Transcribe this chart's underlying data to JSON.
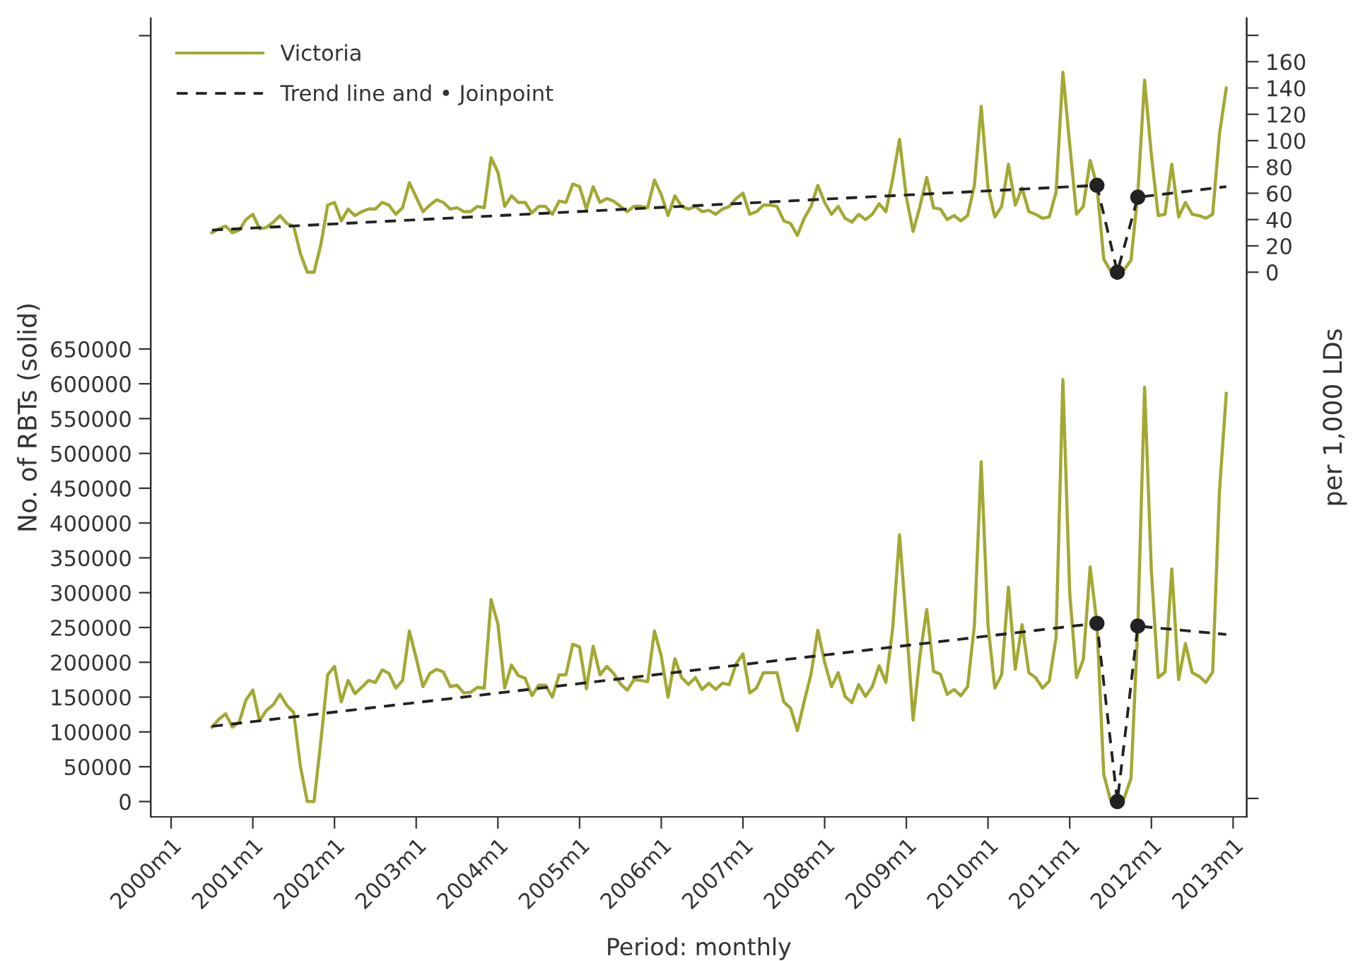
{
  "chart_data": {
    "type": "line",
    "xlabel": "Period: monthly",
    "ylabel": "No. of RBTs (solid)",
    "y2label": "per 1,000 LDs",
    "x": [
      "2000-07",
      "2000-08",
      "2000-09",
      "2000-10",
      "2000-11",
      "2000-12",
      "2001-01",
      "2001-02",
      "2001-03",
      "2001-04",
      "2001-05",
      "2001-06",
      "2001-07",
      "2001-08",
      "2001-09",
      "2001-10",
      "2001-11",
      "2001-12",
      "2002-01",
      "2002-02",
      "2002-03",
      "2002-04",
      "2002-05",
      "2002-06",
      "2002-07",
      "2002-08",
      "2002-09",
      "2002-10",
      "2002-11",
      "2002-12",
      "2003-01",
      "2003-02",
      "2003-03",
      "2003-04",
      "2003-05",
      "2003-06",
      "2003-07",
      "2003-08",
      "2003-09",
      "2003-10",
      "2003-11",
      "2003-12",
      "2004-01",
      "2004-02",
      "2004-03",
      "2004-04",
      "2004-05",
      "2004-06",
      "2004-07",
      "2004-08",
      "2004-09",
      "2004-10",
      "2004-11",
      "2004-12",
      "2005-01",
      "2005-02",
      "2005-03",
      "2005-04",
      "2005-05",
      "2005-06",
      "2005-07",
      "2005-08",
      "2005-09",
      "2005-10",
      "2005-11",
      "2005-12",
      "2006-01",
      "2006-02",
      "2006-03",
      "2006-04",
      "2006-05",
      "2006-06",
      "2006-07",
      "2006-08",
      "2006-09",
      "2006-10",
      "2006-11",
      "2006-12",
      "2007-01",
      "2007-02",
      "2007-03",
      "2007-04",
      "2007-05",
      "2007-06",
      "2007-07",
      "2007-08",
      "2007-09",
      "2007-10",
      "2007-11",
      "2007-12",
      "2008-01",
      "2008-02",
      "2008-03",
      "2008-04",
      "2008-05",
      "2008-06",
      "2008-07",
      "2008-08",
      "2008-09",
      "2008-10",
      "2008-11",
      "2008-12",
      "2009-01",
      "2009-02",
      "2009-03",
      "2009-04",
      "2009-05",
      "2009-06",
      "2009-07",
      "2009-08",
      "2009-09",
      "2009-10",
      "2009-11",
      "2009-12",
      "2010-01",
      "2010-02",
      "2010-03",
      "2010-04",
      "2010-05",
      "2010-06",
      "2010-07",
      "2010-08",
      "2010-09",
      "2010-10",
      "2010-11",
      "2010-12",
      "2011-01",
      "2011-02",
      "2011-03",
      "2011-04",
      "2011-05",
      "2011-06",
      "2011-07",
      "2011-08",
      "2011-09",
      "2011-10",
      "2011-11",
      "2011-12",
      "2012-01",
      "2012-02",
      "2012-03",
      "2012-04",
      "2012-05",
      "2012-06",
      "2012-07",
      "2012-08",
      "2012-09",
      "2012-10",
      "2012-11",
      "2012-12"
    ],
    "series": [
      {
        "name": "Victoria",
        "color": "#a3a832",
        "axis": "y2",
        "values": [
          30,
          33,
          35,
          30,
          32,
          40,
          44,
          33,
          34,
          38,
          43,
          37,
          35,
          14,
          0,
          0,
          21,
          51,
          53,
          39,
          48,
          43,
          46,
          48,
          48,
          53,
          51,
          44,
          49,
          68,
          57,
          46,
          51,
          55,
          53,
          48,
          49,
          46,
          46,
          50,
          49,
          87,
          76,
          50,
          58,
          53,
          53,
          45,
          50,
          50,
          44,
          54,
          53,
          67,
          65,
          48,
          65,
          53,
          56,
          54,
          50,
          46,
          50,
          50,
          49,
          70,
          59,
          43,
          58,
          50,
          48,
          50,
          46,
          47,
          44,
          48,
          50,
          56,
          60,
          44,
          46,
          51,
          51,
          50,
          39,
          37,
          28,
          41,
          50,
          66,
          53,
          44,
          50,
          41,
          38,
          44,
          40,
          44,
          52,
          46,
          71,
          101,
          57,
          31,
          50,
          72,
          49,
          48,
          40,
          43,
          39,
          43,
          66,
          126,
          64,
          42,
          50,
          82,
          51,
          64,
          46,
          44,
          41,
          42,
          61,
          152,
          97,
          44,
          50,
          85,
          66,
          10,
          1,
          0,
          2,
          9,
          59,
          146,
          89,
          43,
          44,
          82,
          42,
          53,
          44,
          43,
          41,
          44,
          105,
          140
        ]
      },
      {
        "color": "#a3a832",
        "axis": "y",
        "values": [
          107000,
          118000,
          126000,
          107000,
          114000,
          146000,
          160000,
          116000,
          131000,
          139000,
          154000,
          138000,
          128000,
          50000,
          0,
          0,
          87000,
          182000,
          194000,
          143000,
          174000,
          155000,
          164000,
          174000,
          171000,
          189000,
          184000,
          163000,
          174000,
          245000,
          206000,
          165000,
          184000,
          190000,
          186000,
          165000,
          167000,
          156000,
          157000,
          164000,
          163000,
          290000,
          255000,
          163000,
          196000,
          181000,
          177000,
          152000,
          167000,
          167000,
          150000,
          182000,
          182000,
          226000,
          222000,
          162000,
          223000,
          182000,
          194000,
          184000,
          169000,
          160000,
          175000,
          174000,
          172000,
          245000,
          209000,
          150000,
          205000,
          178000,
          168000,
          178000,
          161000,
          170000,
          161000,
          170000,
          168000,
          198000,
          212000,
          156000,
          163000,
          185000,
          185000,
          185000,
          143000,
          134000,
          102000,
          144000,
          183000,
          246000,
          200000,
          165000,
          185000,
          151000,
          142000,
          168000,
          151000,
          165000,
          195000,
          171000,
          249000,
          383000,
          256000,
          117000,
          209000,
          276000,
          187000,
          183000,
          154000,
          161000,
          152000,
          165000,
          253000,
          488000,
          253000,
          163000,
          182000,
          308000,
          190000,
          254000,
          185000,
          178000,
          163000,
          173000,
          236000,
          606000,
          300000,
          178000,
          204000,
          337000,
          256000,
          39000,
          2000,
          0,
          5000,
          33000,
          249000,
          595000,
          330000,
          178000,
          186000,
          334000,
          175000,
          227000,
          185000,
          180000,
          171000,
          186000,
          446000,
          586000
        ]
      },
      {
        "name": "Trend line and • Joinpoint",
        "color": "#222222",
        "axis": "y2",
        "line_style": "dashed",
        "x": [
          "2000-07",
          "2011-05",
          "2011-08",
          "2011-11",
          "2012-12"
        ],
        "values": [
          32,
          66,
          0,
          57,
          65
        ]
      },
      {
        "color": "#222222",
        "axis": "y",
        "line_style": "dashed",
        "x": [
          "2000-07",
          "2011-05",
          "2011-08",
          "2011-11",
          "2012-12"
        ],
        "values": [
          108000,
          256000,
          0,
          252000,
          240000
        ]
      },
      {
        "type": "scatter",
        "color": "#222222",
        "axis": "y2",
        "marker": "circle",
        "x": [
          "2011-05",
          "2011-08",
          "2011-11"
        ],
        "values": [
          66,
          0,
          57
        ]
      },
      {
        "type": "scatter",
        "color": "#222222",
        "axis": "y",
        "marker": "circle",
        "x": [
          "2011-05",
          "2011-08",
          "2011-11"
        ],
        "values": [
          256000,
          0,
          252000
        ]
      }
    ],
    "xlim": [
      "1999-10",
      "2013-03"
    ],
    "xticks": [
      {
        "value": "2000-01",
        "label": "2000m1"
      },
      {
        "value": "2001-01",
        "label": "2001m1"
      },
      {
        "value": "2002-01",
        "label": "2002m1"
      },
      {
        "value": "2003-01",
        "label": "2003m1"
      },
      {
        "value": "2004-01",
        "label": "2004m1"
      },
      {
        "value": "2005-01",
        "label": "2005m1"
      },
      {
        "value": "2006-01",
        "label": "2006m1"
      },
      {
        "value": "2007-01",
        "label": "2007m1"
      },
      {
        "value": "2008-01",
        "label": "2008m1"
      },
      {
        "value": "2009-01",
        "label": "2009m1"
      },
      {
        "value": "2010-01",
        "label": "2010m1"
      },
      {
        "value": "2011-01",
        "label": "2011m1"
      },
      {
        "value": "2012-01",
        "label": "2012m1"
      },
      {
        "value": "2013-01",
        "label": "2013m1"
      }
    ],
    "ylim": [
      -22000,
      1125000
    ],
    "yticks": [
      0,
      50000,
      100000,
      150000,
      200000,
      250000,
      300000,
      350000,
      400000,
      450000,
      500000,
      550000,
      600000,
      650000,
      {
        "value": 1100000,
        "label": null
      }
    ],
    "y2lim": [
      -414,
      193
    ],
    "y2ticks": [
      {
        "value": -400,
        "label": null
      },
      0,
      20,
      40,
      60,
      80,
      100,
      120,
      140,
      160,
      {
        "value": 180,
        "label": null
      }
    ],
    "legend": "top left",
    "grid": false
  }
}
